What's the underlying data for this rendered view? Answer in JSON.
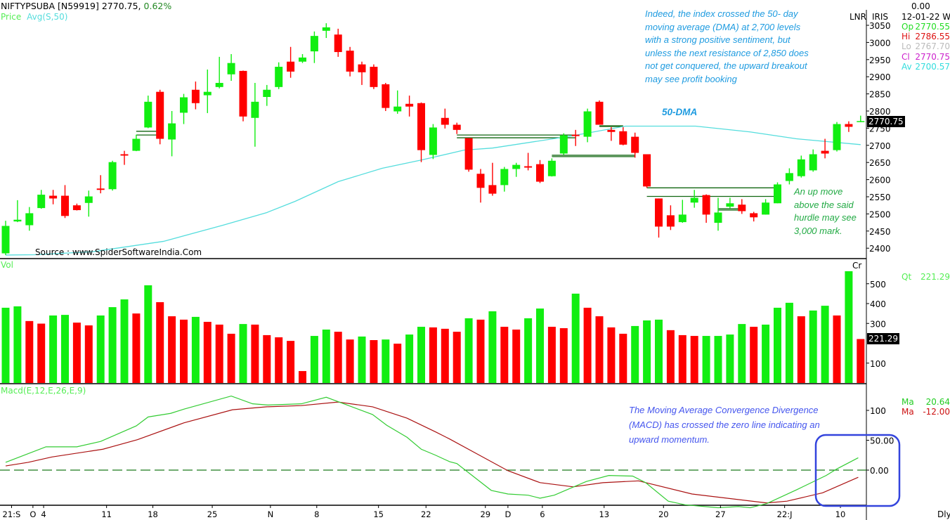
{
  "header": {
    "symbol": "NIFTYPSUBA [N59919]",
    "last": "2770.75,",
    "change": "0.62%",
    "price_label": "Price",
    "avg_label": "Avg(S,50)",
    "lnr": "LNR",
    "iris": "IRIS"
  },
  "info": {
    "top_value": "0.00",
    "date": "12-01-22 We",
    "rows": [
      {
        "label": "Op",
        "value": "2770.55",
        "color": "#22dd22"
      },
      {
        "label": "Hi",
        "value": "2786.55",
        "color": "#dd1111"
      },
      {
        "label": "Lo",
        "value": "2767.70",
        "color": "#bbbbbb"
      },
      {
        "label": "Cl",
        "value": "2770.75",
        "color": "#cc22cc"
      },
      {
        "label": "Av",
        "value": "2700.57",
        "color": "#33dddd"
      }
    ],
    "vol_label": "Qt",
    "vol_value": "221.29",
    "macd_rows": [
      {
        "label": "Ma",
        "value": "20.64",
        "color": "#22cc22"
      },
      {
        "label": "Ma",
        "value": "-12.00",
        "color": "#cc1111"
      }
    ]
  },
  "annotations": {
    "top_text": [
      "Indeed, the index crossed the 50- day",
      "moving average (DMA) at 2,700 levels",
      "with a strong positive sentiment, but",
      "unless the next resistance of 2,850 does",
      "not get conquered, the upward breakout",
      "may see profit booking"
    ],
    "dma_label": "50-DMA",
    "green_text": [
      "An up move",
      "above the said",
      "hurdle may see",
      "3,000 mark."
    ],
    "source": "Source : www.SpiderSoftwareIndia.Com",
    "macd_text": [
      "The Moving Average Convergence Divergence",
      "(MACD) has crossed the zero line indicating an",
      "upward momentum."
    ]
  },
  "panels": {
    "vol_label": "Vol",
    "vol_unit": "Cr",
    "macd_label": "Macd(E,12,E,26,E,9)",
    "period": "Dly",
    "price_box": "2770.75",
    "vol_box": "221.29"
  },
  "colors": {
    "up": "#11ee11",
    "down": "#ff0000",
    "dma": "#55dddd",
    "macd": "#33cc33",
    "signal": "#aa1111",
    "zero": "#1a7a1a",
    "level": "#116611",
    "highlight": "#3344dd"
  },
  "chart_data": {
    "type": "candlestick",
    "title": "NIFTYPSUBA daily",
    "price_axis": {
      "ticks": [
        3050,
        3000,
        2950,
        2900,
        2850,
        2800,
        2750,
        2700,
        2650,
        2600,
        2550,
        2500,
        2450,
        2400
      ],
      "range": [
        2380,
        3070
      ]
    },
    "x_labels": [
      {
        "label": "21:S",
        "idx": 0.5
      },
      {
        "label": "O",
        "idx": 2.3
      },
      {
        "label": "4",
        "idx": 3.2
      },
      {
        "label": "11",
        "idx": 8.5
      },
      {
        "label": "18",
        "idx": 12.4
      },
      {
        "label": "25",
        "idx": 17.4
      },
      {
        "label": "N",
        "idx": 22.3
      },
      {
        "label": "8",
        "idx": 26.2
      },
      {
        "label": "15",
        "idx": 31.4
      },
      {
        "label": "22",
        "idx": 35.4
      },
      {
        "label": "29",
        "idx": 40.4
      },
      {
        "label": "D",
        "idx": 42.3
      },
      {
        "label": "6",
        "idx": 45.2
      },
      {
        "label": "13",
        "idx": 50.4
      },
      {
        "label": "20",
        "idx": 55.4
      },
      {
        "label": "27",
        "idx": 60.2
      },
      {
        "label": "22:J",
        "idx": 65.6
      },
      {
        "label": "10",
        "idx": 70.3
      }
    ],
    "ohlc": [
      [
        2385,
        2480,
        2380,
        2465
      ],
      [
        2478,
        2540,
        2476,
        2483
      ],
      [
        2467,
        2520,
        2451,
        2502
      ],
      [
        2517,
        2570,
        2515,
        2556
      ],
      [
        2553,
        2570,
        2528,
        2545
      ],
      [
        2553,
        2584,
        2488,
        2494
      ],
      [
        2525,
        2530,
        2510,
        2511
      ],
      [
        2532,
        2568,
        2492,
        2551
      ],
      [
        2574,
        2613,
        2560,
        2570
      ],
      [
        2572,
        2655,
        2568,
        2651
      ],
      [
        2674,
        2684,
        2643,
        2670
      ],
      [
        2684,
        2731,
        2683,
        2719
      ],
      [
        2752,
        2845,
        2750,
        2827
      ],
      [
        2856,
        2862,
        2703,
        2719
      ],
      [
        2717,
        2800,
        2668,
        2764
      ],
      [
        2795,
        2850,
        2762,
        2840
      ],
      [
        2862,
        2886,
        2805,
        2823
      ],
      [
        2846,
        2921,
        2794,
        2856
      ],
      [
        2870,
        2958,
        2866,
        2882
      ],
      [
        2907,
        2966,
        2888,
        2940
      ],
      [
        2917,
        2918,
        2770,
        2784
      ],
      [
        2780,
        2882,
        2696,
        2827
      ],
      [
        2841,
        2876,
        2815,
        2862
      ],
      [
        2870,
        2942,
        2864,
        2929
      ],
      [
        2944,
        2987,
        2897,
        2915
      ],
      [
        2944,
        2966,
        2940,
        2956
      ],
      [
        2974,
        3032,
        2940,
        3019
      ],
      [
        3034,
        3056,
        3013,
        3044
      ],
      [
        3023,
        3040,
        2958,
        2972
      ],
      [
        2976,
        2987,
        2901,
        2915
      ],
      [
        2936,
        2944,
        2876,
        2913
      ],
      [
        2929,
        2936,
        2864,
        2870
      ],
      [
        2878,
        2882,
        2800,
        2809
      ],
      [
        2799,
        2860,
        2792,
        2813
      ],
      [
        2821,
        2845,
        2784,
        2813
      ],
      [
        2823,
        2825,
        2651,
        2686
      ],
      [
        2672,
        2762,
        2660,
        2752
      ],
      [
        2780,
        2807,
        2749,
        2760
      ],
      [
        2760,
        2766,
        2733,
        2745
      ],
      [
        2721,
        2721,
        2623,
        2629
      ],
      [
        2617,
        2631,
        2533,
        2576
      ],
      [
        2584,
        2649,
        2553,
        2559
      ],
      [
        2584,
        2637,
        2565,
        2631
      ],
      [
        2631,
        2649,
        2608,
        2643
      ],
      [
        2639,
        2678,
        2627,
        2635
      ],
      [
        2645,
        2657,
        2590,
        2594
      ],
      [
        2610,
        2662,
        2609,
        2655
      ],
      [
        2676,
        2735,
        2672,
        2729
      ],
      [
        2731,
        2745,
        2698,
        2727
      ],
      [
        2725,
        2807,
        2709,
        2799
      ],
      [
        2827,
        2831,
        2760,
        2760
      ],
      [
        2745,
        2753,
        2713,
        2739
      ],
      [
        2741,
        2753,
        2700,
        2702
      ],
      [
        2725,
        2737,
        2664,
        2678
      ],
      [
        2674,
        2674,
        2576,
        2580
      ],
      [
        2545,
        2545,
        2431,
        2463
      ],
      [
        2496,
        2525,
        2453,
        2463
      ],
      [
        2476,
        2541,
        2474,
        2498
      ],
      [
        2533,
        2570,
        2518,
        2547
      ],
      [
        2555,
        2557,
        2474,
        2498
      ],
      [
        2474,
        2547,
        2451,
        2504
      ],
      [
        2521,
        2547,
        2516,
        2531
      ],
      [
        2527,
        2543,
        2500,
        2508
      ],
      [
        2502,
        2506,
        2478,
        2490
      ],
      [
        2498,
        2543,
        2498,
        2533
      ],
      [
        2531,
        2592,
        2531,
        2586
      ],
      [
        2596,
        2633,
        2586,
        2619
      ],
      [
        2610,
        2670,
        2606,
        2659
      ],
      [
        2627,
        2688,
        2623,
        2674
      ],
      [
        2684,
        2719,
        2662,
        2676
      ],
      [
        2686,
        2768,
        2682,
        2762
      ],
      [
        2762,
        2770,
        2739,
        2754
      ],
      [
        2770.55,
        2786.55,
        2767.7,
        2770.75
      ]
    ],
    "dma50": [
      [
        0,
        2380
      ],
      [
        2.5,
        2381
      ],
      [
        7.4,
        2390
      ],
      [
        13.3,
        2420
      ],
      [
        18.3,
        2467
      ],
      [
        22,
        2504
      ],
      [
        24.4,
        2537
      ],
      [
        28,
        2594
      ],
      [
        31.7,
        2633
      ],
      [
        35,
        2657
      ],
      [
        38.6,
        2686
      ],
      [
        41,
        2692
      ],
      [
        47.6,
        2727
      ],
      [
        52.2,
        2756
      ],
      [
        58.1,
        2756
      ],
      [
        62.7,
        2739
      ],
      [
        66.6,
        2719
      ],
      [
        72,
        2702
      ]
    ],
    "levels": [
      {
        "price": 2741,
        "from": 11,
        "to": 13
      },
      {
        "price": 2730,
        "from": 11,
        "to": 13
      },
      {
        "price": 2730,
        "from": 38,
        "to": 48
      },
      {
        "price": 2722,
        "from": 38,
        "to": 48
      },
      {
        "price": 2671,
        "from": 46,
        "to": 53
      },
      {
        "price": 2667,
        "from": 46,
        "to": 53
      },
      {
        "price": 2757,
        "from": 50,
        "to": 52
      },
      {
        "price": 2755,
        "from": 50,
        "to": 52
      },
      {
        "price": 2576,
        "from": 54,
        "to": 65
      },
      {
        "price": 2551,
        "from": 54,
        "to": 65
      },
      {
        "price": 2515,
        "from": 60,
        "to": 62
      },
      {
        "price": 2511,
        "from": 60,
        "to": 62
      }
    ],
    "volume": {
      "unit": "Cr",
      "ticks": [
        500,
        400,
        300,
        100
      ],
      "values": [
        379,
        386,
        312,
        299,
        340,
        343,
        304,
        290,
        340,
        382,
        421,
        350,
        492,
        407,
        336,
        319,
        333,
        308,
        294,
        248,
        297,
        294,
        241,
        230,
        212,
        60,
        237,
        269,
        258,
        219,
        234,
        216,
        219,
        198,
        244,
        283,
        280,
        273,
        258,
        326,
        319,
        361,
        283,
        269,
        326,
        375,
        283,
        276,
        450,
        379,
        336,
        280,
        248,
        287,
        315,
        319,
        266,
        241,
        237,
        237,
        237,
        244,
        297,
        283,
        294,
        379,
        404,
        336,
        365,
        389,
        340,
        563,
        221.29
      ],
      "up": [
        1,
        1,
        0,
        0,
        1,
        1,
        0,
        0,
        1,
        1,
        1,
        0,
        1,
        0,
        0,
        0,
        1,
        0,
        0,
        0,
        1,
        0,
        0,
        0,
        0,
        0,
        1,
        1,
        0,
        0,
        1,
        0,
        1,
        0,
        1,
        1,
        0,
        0,
        0,
        1,
        0,
        1,
        0,
        0,
        1,
        1,
        0,
        0,
        1,
        0,
        0,
        0,
        0,
        1,
        1,
        1,
        0,
        0,
        0,
        1,
        1,
        1,
        1,
        0,
        1,
        1,
        1,
        0,
        1,
        1,
        0,
        1,
        0
      ]
    },
    "macd": {
      "ticks": [
        "100",
        "50.00",
        "0.00"
      ],
      "macd_line": [
        [
          0,
          13
        ],
        [
          3.4,
          39
        ],
        [
          6,
          39
        ],
        [
          8,
          48
        ],
        [
          11,
          74
        ],
        [
          12,
          89
        ],
        [
          13.9,
          95
        ],
        [
          15,
          102
        ],
        [
          19,
          124
        ],
        [
          20.8,
          111
        ],
        [
          22.1,
          109
        ],
        [
          24.9,
          111
        ],
        [
          27,
          122
        ],
        [
          30.9,
          93
        ],
        [
          32.1,
          75
        ],
        [
          33.8,
          55
        ],
        [
          35,
          35
        ],
        [
          37.4,
          14
        ],
        [
          36.2,
          25
        ],
        [
          38,
          11
        ],
        [
          40.9,
          -34
        ],
        [
          42.3,
          -40
        ],
        [
          44,
          -42
        ],
        [
          45,
          -47
        ],
        [
          46.2,
          -42
        ],
        [
          48.9,
          -19
        ],
        [
          50.8,
          -9
        ],
        [
          52.8,
          -10
        ],
        [
          53.9,
          -21
        ],
        [
          55.8,
          -52
        ],
        [
          57.2,
          -58
        ],
        [
          60,
          -63
        ],
        [
          61.7,
          -61
        ],
        [
          62.7,
          -63
        ],
        [
          64.1,
          -56
        ],
        [
          66.6,
          -33
        ],
        [
          69.1,
          -9
        ],
        [
          70,
          2
        ],
        [
          71.8,
          20.64
        ]
      ],
      "signal_line": [
        [
          0,
          7
        ],
        [
          1.9,
          13
        ],
        [
          3.9,
          22
        ],
        [
          8.2,
          35
        ],
        [
          11.1,
          51
        ],
        [
          15,
          79
        ],
        [
          19.1,
          101
        ],
        [
          22,
          106
        ],
        [
          24.9,
          108
        ],
        [
          28,
          114
        ],
        [
          30.9,
          106
        ],
        [
          33.8,
          87
        ],
        [
          36.2,
          64
        ],
        [
          37.4,
          52
        ],
        [
          39.8,
          26
        ],
        [
          42.3,
          -1
        ],
        [
          45,
          -21
        ],
        [
          47.8,
          -28
        ],
        [
          50.3,
          -21
        ],
        [
          53.3,
          -18
        ],
        [
          57.8,
          -40
        ],
        [
          64.1,
          -55
        ],
        [
          65.8,
          -52
        ],
        [
          68.8,
          -38
        ],
        [
          71.8,
          -12
        ]
      ]
    }
  }
}
